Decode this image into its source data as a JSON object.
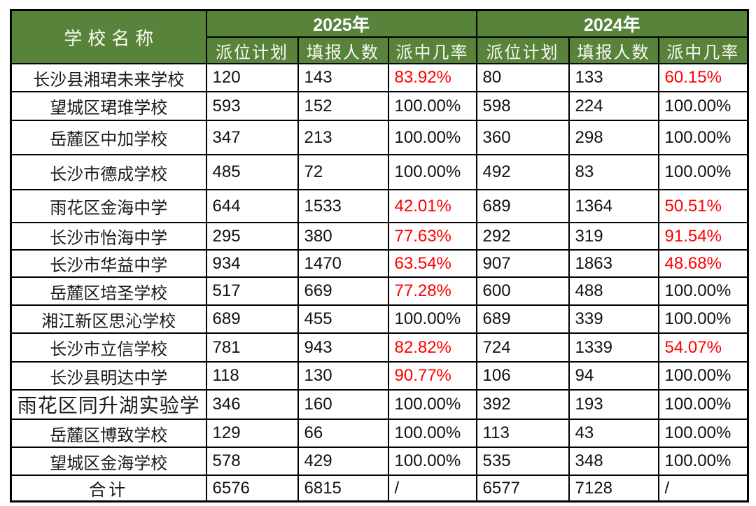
{
  "table": {
    "header": {
      "school_col": "学校名称",
      "year_2025": "2025年",
      "year_2024": "2024年",
      "sub_plan": "派位计划",
      "sub_applicants": "填报人数",
      "sub_rate": "派中几率"
    },
    "colors": {
      "header_bg": "#57833B",
      "header_text": "#fbfbf2",
      "rate_red": "#ff0000",
      "border": "#000000"
    },
    "rows": [
      {
        "school": "长沙县湘珺未来学校",
        "p25": "120",
        "a25": "143",
        "r25": "83.92%",
        "r25_red": true,
        "p24": "80",
        "a24": "133",
        "r24": "60.15%",
        "r24_red": true
      },
      {
        "school": "望城区珺琟学校",
        "p25": "593",
        "a25": "152",
        "r25": "100.00%",
        "r25_red": false,
        "p24": "598",
        "a24": "224",
        "r24": "100.00%",
        "r24_red": false
      },
      {
        "school": "岳麓区中加学校",
        "p25": "347",
        "a25": "213",
        "r25": "100.00%",
        "r25_red": false,
        "p24": "360",
        "a24": "298",
        "r24": "100.00%",
        "r24_red": false
      },
      {
        "school": "长沙市德成学校",
        "p25": "485",
        "a25": "72",
        "r25": "100.00%",
        "r25_red": false,
        "p24": "492",
        "a24": "83",
        "r24": "100.00%",
        "r24_red": false
      },
      {
        "school": "雨花区金海中学",
        "p25": "644",
        "a25": "1533",
        "r25": "42.01%",
        "r25_red": true,
        "p24": "689",
        "a24": "1364",
        "r24": "50.51%",
        "r24_red": true
      },
      {
        "school": "长沙市怡海中学",
        "p25": "295",
        "a25": "380",
        "r25": "77.63%",
        "r25_red": true,
        "p24": "292",
        "a24": "319",
        "r24": "91.54%",
        "r24_red": true
      },
      {
        "school": "长沙市华益中学",
        "p25": "934",
        "a25": "1470",
        "r25": "63.54%",
        "r25_red": true,
        "p24": "907",
        "a24": "1863",
        "r24": "48.68%",
        "r24_red": true
      },
      {
        "school": "岳麓区培圣学校",
        "p25": "517",
        "a25": "669",
        "r25": "77.28%",
        "r25_red": true,
        "p24": "600",
        "a24": "488",
        "r24": "100.00%",
        "r24_red": false
      },
      {
        "school": "湘江新区思沁学校",
        "p25": "689",
        "a25": "455",
        "r25": "100.00%",
        "r25_red": false,
        "p24": "689",
        "a24": "339",
        "r24": "100.00%",
        "r24_red": false
      },
      {
        "school": "长沙市立信学校",
        "p25": "781",
        "a25": "943",
        "r25": "82.82%",
        "r25_red": true,
        "p24": "724",
        "a24": "1339",
        "r24": "54.07%",
        "r24_red": true
      },
      {
        "school": "长沙县明达中学",
        "p25": "118",
        "a25": "130",
        "r25": "90.77%",
        "r25_red": true,
        "p24": "106",
        "a24": "94",
        "r24": "100.00%",
        "r24_red": false
      },
      {
        "school": "雨花区同升湖实验学",
        "p25": "346",
        "a25": "160",
        "r25": "100.00%",
        "r25_red": false,
        "p24": "392",
        "a24": "193",
        "r24": "100.00%",
        "r24_red": false
      },
      {
        "school": "岳麓区博致学校",
        "p25": "129",
        "a25": "66",
        "r25": "100.00%",
        "r25_red": false,
        "p24": "113",
        "a24": "43",
        "r24": "100.00%",
        "r24_red": false
      },
      {
        "school": "望城区金海学校",
        "p25": "578",
        "a25": "429",
        "r25": "100.00%",
        "r25_red": false,
        "p24": "535",
        "a24": "348",
        "r24": "100.00%",
        "r24_red": false
      }
    ],
    "total": {
      "label": "合计",
      "p25": "6576",
      "a25": "6815",
      "r25": "/",
      "p24": "6577",
      "a24": "7128",
      "r24": "/"
    }
  },
  "chart_data": {
    "type": "table",
    "title": "",
    "columns": [
      "学校名称",
      "2025年 派位计划",
      "2025年 填报人数",
      "2025年 派中几率",
      "2024年 派位计划",
      "2024年 填报人数",
      "2024年 派中几率"
    ],
    "rows": [
      [
        "长沙县湘珺未来学校",
        120,
        143,
        "83.92%",
        80,
        133,
        "60.15%"
      ],
      [
        "望城区珺琟学校",
        593,
        152,
        "100.00%",
        598,
        224,
        "100.00%"
      ],
      [
        "岳麓区中加学校",
        347,
        213,
        "100.00%",
        360,
        298,
        "100.00%"
      ],
      [
        "长沙市德成学校",
        485,
        72,
        "100.00%",
        492,
        83,
        "100.00%"
      ],
      [
        "雨花区金海中学",
        644,
        1533,
        "42.01%",
        689,
        1364,
        "50.51%"
      ],
      [
        "长沙市怡海中学",
        295,
        380,
        "77.63%",
        292,
        319,
        "91.54%"
      ],
      [
        "长沙市华益中学",
        934,
        1470,
        "63.54%",
        907,
        1863,
        "48.68%"
      ],
      [
        "岳麓区培圣学校",
        517,
        669,
        "77.28%",
        600,
        488,
        "100.00%"
      ],
      [
        "湘江新区思沁学校",
        689,
        455,
        "100.00%",
        689,
        339,
        "100.00%"
      ],
      [
        "长沙市立信学校",
        781,
        943,
        "82.82%",
        724,
        1339,
        "54.07%"
      ],
      [
        "长沙县明达中学",
        118,
        130,
        "90.77%",
        106,
        94,
        "100.00%"
      ],
      [
        "雨花区同升湖实验学",
        346,
        160,
        "100.00%",
        392,
        193,
        "100.00%"
      ],
      [
        "岳麓区博致学校",
        129,
        66,
        "100.00%",
        113,
        43,
        "100.00%"
      ],
      [
        "望城区金海学校",
        578,
        429,
        "100.00%",
        535,
        348,
        "100.00%"
      ],
      [
        "合计",
        6576,
        6815,
        "/",
        6577,
        7128,
        "/"
      ]
    ]
  }
}
